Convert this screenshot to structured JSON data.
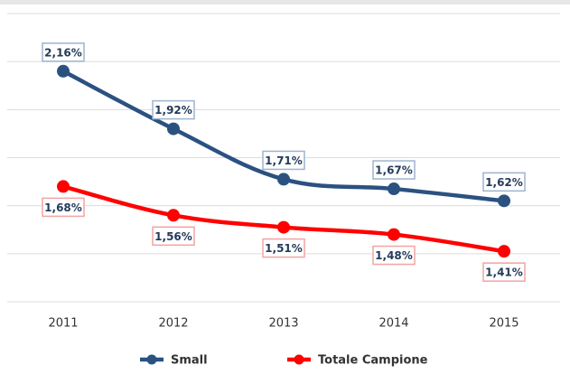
{
  "chart_data": {
    "type": "line",
    "categories": [
      "2011",
      "2012",
      "2013",
      "2014",
      "2015"
    ],
    "series": [
      {
        "name": "Small",
        "color": "#2b5181",
        "values": [
          2.16,
          1.92,
          1.71,
          1.67,
          1.62
        ],
        "value_labels": [
          "2,16%",
          "1,92%",
          "1,71%",
          "1,67%",
          "1,62%"
        ]
      },
      {
        "name": "Totale Campione",
        "color": "#ff0000",
        "values": [
          1.68,
          1.56,
          1.51,
          1.48,
          1.41
        ],
        "value_labels": [
          "1,68%",
          "1,56%",
          "1,51%",
          "1,48%",
          "1,41%"
        ]
      }
    ],
    "ylim": [
      1.2,
      2.4
    ],
    "yticks": [
      1.2,
      1.4,
      1.6,
      1.8,
      2.0,
      2.2,
      2.4
    ],
    "grid": true
  }
}
